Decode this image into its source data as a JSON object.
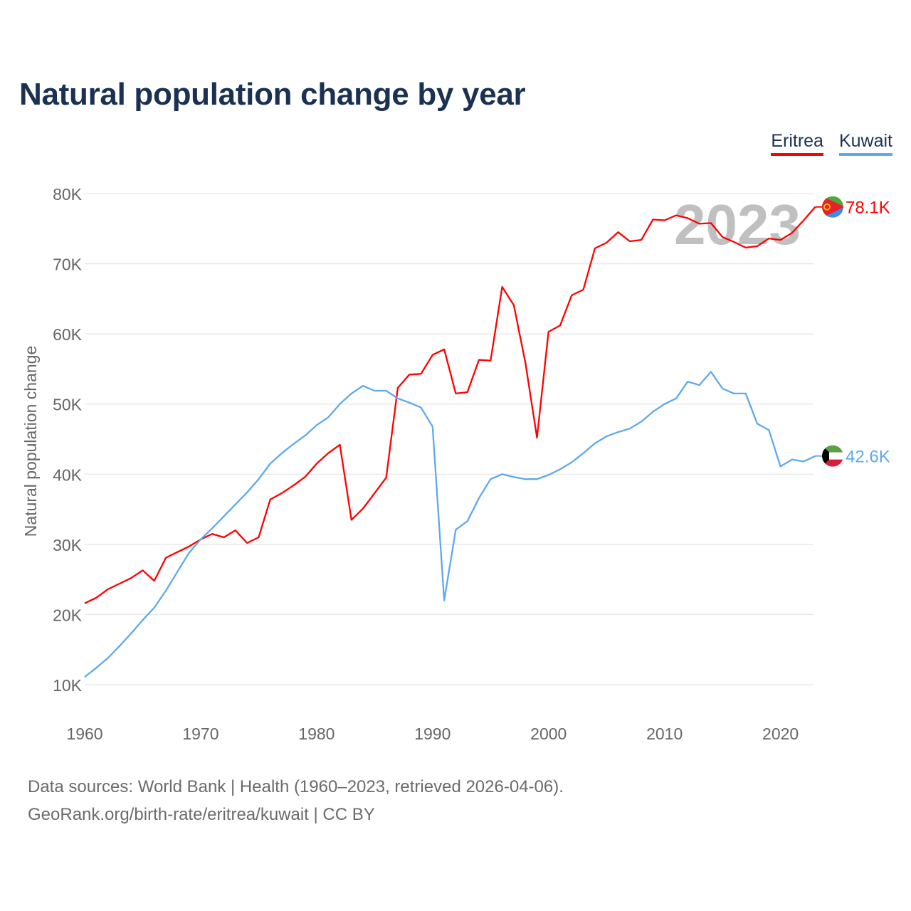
{
  "chart_data": {
    "type": "line",
    "title": "Natural population change by year",
    "xlabel": "",
    "ylabel": "Natural population change",
    "xlim": [
      1960,
      2023
    ],
    "ylim": [
      10000,
      80000
    ],
    "x_ticks": [
      "1960",
      "1970",
      "1980",
      "1990",
      "2000",
      "2010",
      "2020"
    ],
    "x_tick_values": [
      1960,
      1970,
      1980,
      1990,
      2000,
      2010,
      2020
    ],
    "y_ticks": [
      "10K",
      "20K",
      "30K",
      "40K",
      "50K",
      "60K",
      "70K",
      "80K"
    ],
    "y_tick_values": [
      10000,
      20000,
      30000,
      40000,
      50000,
      60000,
      70000,
      80000
    ],
    "grid": true,
    "legend_position": "top-right",
    "year_watermark": "2023",
    "x": [
      1960,
      1961,
      1962,
      1963,
      1964,
      1965,
      1966,
      1967,
      1968,
      1969,
      1970,
      1971,
      1972,
      1973,
      1974,
      1975,
      1976,
      1977,
      1978,
      1979,
      1980,
      1981,
      1982,
      1983,
      1984,
      1985,
      1986,
      1987,
      1988,
      1989,
      1990,
      1991,
      1992,
      1993,
      1994,
      1995,
      1996,
      1997,
      1998,
      1999,
      2000,
      2001,
      2002,
      2003,
      2004,
      2005,
      2006,
      2007,
      2008,
      2009,
      2010,
      2011,
      2012,
      2013,
      2014,
      2015,
      2016,
      2017,
      2018,
      2019,
      2020,
      2021,
      2022,
      2023
    ],
    "series": [
      {
        "name": "Eritrea",
        "color": "#ff0000",
        "end_label": "78.1K",
        "values": [
          21600,
          22400,
          23600,
          24400,
          25200,
          26300,
          24800,
          28100,
          28900,
          29700,
          30700,
          31500,
          31000,
          32000,
          30200,
          31000,
          36400,
          37300,
          38400,
          39600,
          41500,
          43000,
          44200,
          33500,
          35100,
          37300,
          39500,
          52300,
          54200,
          54300,
          57000,
          57800,
          51500,
          51700,
          56300,
          56200,
          66700,
          64100,
          55900,
          45200,
          60300,
          61200,
          65500,
          66300,
          72200,
          73000,
          74500,
          73200,
          73400,
          76300,
          76200,
          76900,
          76500,
          75700,
          75800,
          73800,
          73100,
          72300,
          72500,
          73600,
          73400,
          74400,
          76200,
          78100
        ]
      },
      {
        "name": "Kuwait",
        "color": "#5ea9ec",
        "end_label": "42.6K",
        "values": [
          11100,
          12400,
          13800,
          15500,
          17300,
          19200,
          21000,
          23400,
          26100,
          28800,
          30700,
          32300,
          34000,
          35700,
          37400,
          39300,
          41500,
          43000,
          44300,
          45500,
          47000,
          48100,
          50000,
          51500,
          52600,
          51900,
          51900,
          50800,
          50200,
          49500,
          46800,
          22000,
          32100,
          33300,
          36600,
          39300,
          40000,
          39600,
          39300,
          39300,
          39900,
          40700,
          41700,
          43000,
          44400,
          45400,
          46000,
          46500,
          47500,
          48900,
          50000,
          50800,
          53200,
          52700,
          54600,
          52200,
          51500,
          51500,
          47200,
          46300,
          41100,
          42100,
          41800,
          42600
        ]
      }
    ]
  },
  "footer": {
    "line1": "Data sources: World Bank | Health (1960–2023, retrieved 2026-04-06).",
    "line2": "GeoRank.org/birth-rate/eritrea/kuwait | CC BY"
  }
}
